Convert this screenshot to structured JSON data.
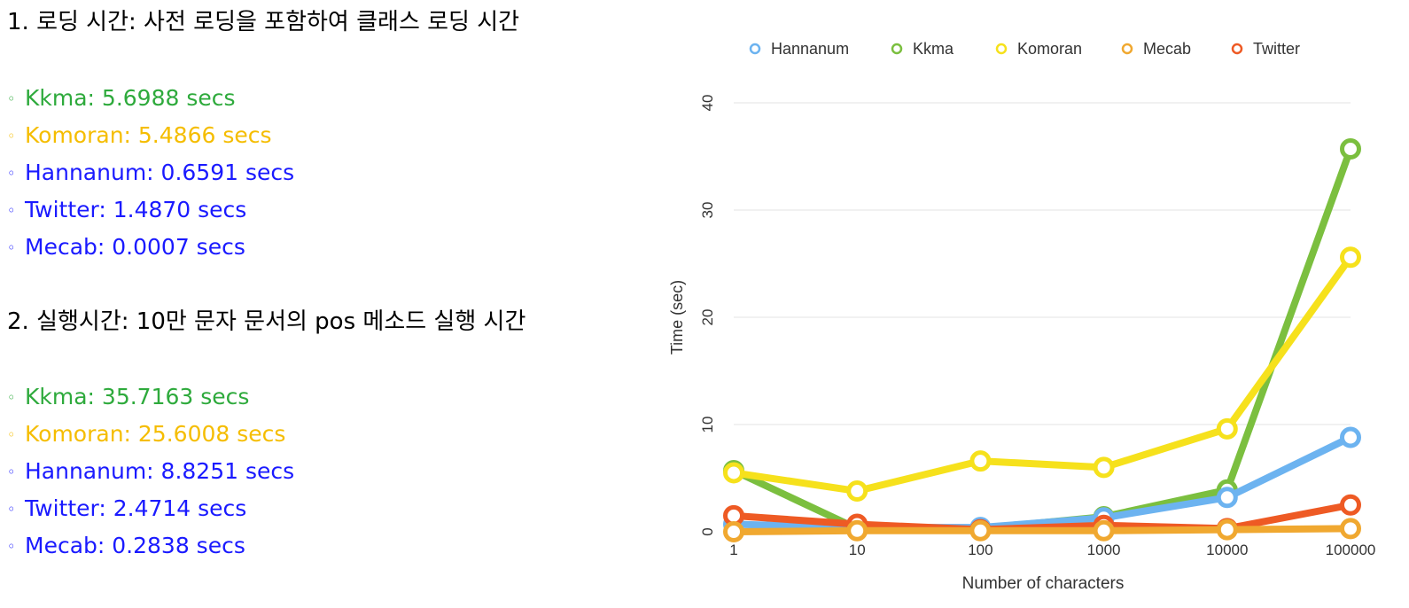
{
  "section1": {
    "heading": "1. 로딩 시간: 사전 로딩을 포함하여 클래스 로딩 시간",
    "items": [
      {
        "text": "Kkma: 5.6988 secs",
        "color": "#2eaa3c"
      },
      {
        "text": "Komoran: 5.4866 secs",
        "color": "#f5bd00"
      },
      {
        "text": "Hannanum: 0.6591 secs",
        "color": "#1a1aff"
      },
      {
        "text": "Twitter: 1.4870 secs",
        "color": "#1a1aff"
      },
      {
        "text": "Mecab: 0.0007 secs",
        "color": "#1a1aff"
      }
    ]
  },
  "section2": {
    "heading": "2. 실행시간: 10만 문자 문서의 pos 메소드 실행 시간",
    "items": [
      {
        "text": "Kkma: 35.7163 secs",
        "color": "#2eaa3c"
      },
      {
        "text": "Komoran: 25.6008 secs",
        "color": "#f5bd00"
      },
      {
        "text": "Hannanum: 8.8251 secs",
        "color": "#1a1aff"
      },
      {
        "text": "Twitter: 2.4714 secs",
        "color": "#1a1aff"
      },
      {
        "text": "Mecab: 0.2838 secs",
        "color": "#1a1aff"
      }
    ]
  },
  "bullet": "◦",
  "chart_data": {
    "type": "line",
    "title": "",
    "xlabel": "Number of characters",
    "ylabel": "Time (sec)",
    "categories": [
      "1",
      "10",
      "100",
      "1000",
      "10000",
      "100000"
    ],
    "yticks": [
      0,
      10,
      20,
      30,
      40
    ],
    "ylim": [
      0,
      40
    ],
    "grid": true,
    "legend_position": "top",
    "series": [
      {
        "name": "Kkma",
        "color": "#7bbf3f",
        "values": [
          5.7,
          0.3,
          0.3,
          1.4,
          3.9,
          35.7
        ]
      },
      {
        "name": "Komoran",
        "color": "#f6e11c",
        "values": [
          5.5,
          3.8,
          6.6,
          6.0,
          9.6,
          25.6
        ]
      },
      {
        "name": "Hannanum",
        "color": "#6cb3f0",
        "values": [
          0.7,
          0.4,
          0.4,
          1.3,
          3.2,
          8.8
        ]
      },
      {
        "name": "Twitter",
        "color": "#ee5a24",
        "values": [
          1.5,
          0.7,
          0.2,
          0.6,
          0.3,
          2.5
        ]
      },
      {
        "name": "Mecab",
        "color": "#f0a830",
        "values": [
          0.0,
          0.1,
          0.1,
          0.1,
          0.2,
          0.3
        ]
      }
    ],
    "legend_order": [
      "Hannanum",
      "Kkma",
      "Komoran",
      "Mecab",
      "Twitter"
    ]
  }
}
